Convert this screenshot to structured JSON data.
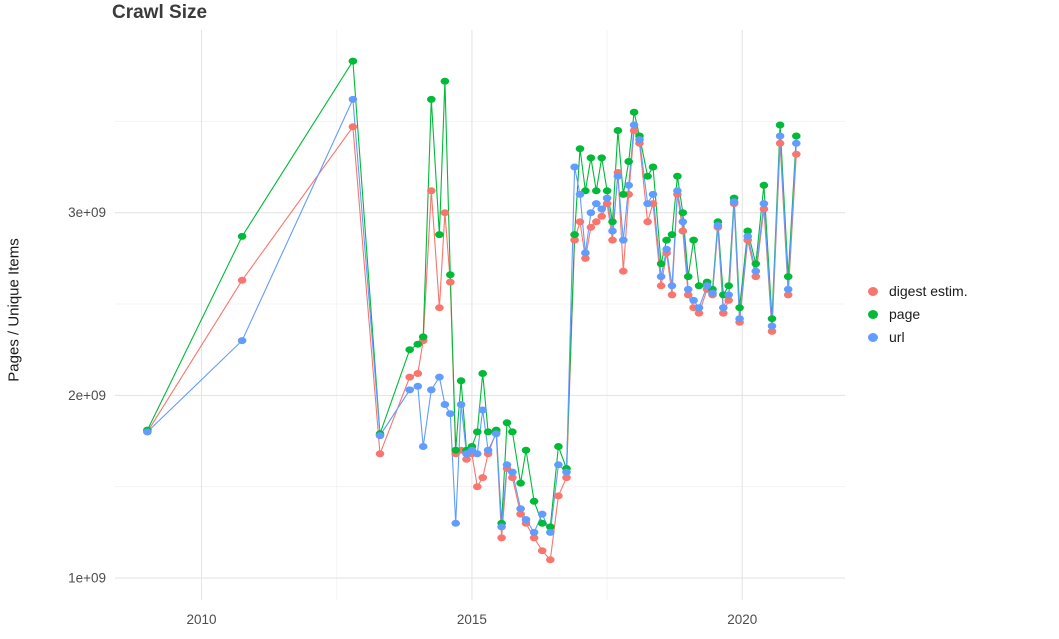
{
  "page": {
    "title": "Crawl Size",
    "ylabel": "Pages / Unique Items"
  },
  "legend": {
    "items": [
      {
        "label": "digest estim.",
        "color": "#F8766D"
      },
      {
        "label": "page",
        "color": "#00BA38"
      },
      {
        "label": "url",
        "color": "#619CFF"
      }
    ]
  },
  "chart_data": {
    "type": "line",
    "title": "Crawl Size",
    "xlabel": "",
    "ylabel": "Pages / Unique Items",
    "y_unit": "values in billions (1 = 1e+09)",
    "xlim": [
      2008.4,
      2021.9
    ],
    "ylim": [
      0.88,
      4.0
    ],
    "grid": true,
    "legend_position": "right",
    "xticks": [
      {
        "v": 2010,
        "label": "2010"
      },
      {
        "v": 2015,
        "label": "2015"
      },
      {
        "v": 2020,
        "label": "2020"
      }
    ],
    "yticks": [
      {
        "v": 1,
        "label": "1e+09"
      },
      {
        "v": 2,
        "label": "2e+09"
      },
      {
        "v": 3,
        "label": "3e+09"
      }
    ],
    "xticks_minor": [
      2012.5,
      2017.5
    ],
    "yticks_minor": [
      1.5,
      2.5,
      3.5
    ],
    "x": [
      2009.0,
      2010.75,
      2012.8,
      2013.3,
      2013.85,
      2014.0,
      2014.1,
      2014.25,
      2014.4,
      2014.5,
      2014.6,
      2014.7,
      2014.8,
      2014.9,
      2015.0,
      2015.1,
      2015.2,
      2015.3,
      2015.45,
      2015.55,
      2015.65,
      2015.75,
      2015.9,
      2016.0,
      2016.15,
      2016.3,
      2016.45,
      2016.6,
      2016.75,
      2016.9,
      2017.0,
      2017.1,
      2017.2,
      2017.3,
      2017.4,
      2017.5,
      2017.6,
      2017.7,
      2017.8,
      2017.9,
      2018.0,
      2018.1,
      2018.25,
      2018.35,
      2018.5,
      2018.6,
      2018.7,
      2018.8,
      2018.9,
      2019.0,
      2019.1,
      2019.2,
      2019.35,
      2019.45,
      2019.55,
      2019.65,
      2019.75,
      2019.85,
      2019.95,
      2020.1,
      2020.25,
      2020.4,
      2020.55,
      2020.7,
      2020.85,
      2021.0
    ],
    "series": [
      {
        "id": "digest",
        "name": "digest estim.",
        "color": "#F8766D",
        "values": [
          1.8,
          2.63,
          3.47,
          1.68,
          2.1,
          2.12,
          2.3,
          3.12,
          2.48,
          3.0,
          2.62,
          1.68,
          1.7,
          1.65,
          1.68,
          1.5,
          1.55,
          1.68,
          1.8,
          1.22,
          1.6,
          1.55,
          1.35,
          1.3,
          1.22,
          1.15,
          1.1,
          1.45,
          1.55,
          2.85,
          2.95,
          2.75,
          2.92,
          2.95,
          2.98,
          3.05,
          2.85,
          3.22,
          2.68,
          3.1,
          3.45,
          3.38,
          2.95,
          3.05,
          2.6,
          2.78,
          2.55,
          3.1,
          2.9,
          2.55,
          2.48,
          2.45,
          2.58,
          2.55,
          2.92,
          2.45,
          2.52,
          3.05,
          2.4,
          2.85,
          2.65,
          3.02,
          2.35,
          3.38,
          2.55,
          3.32
        ]
      },
      {
        "id": "page",
        "name": "page",
        "color": "#00BA38",
        "values": [
          1.81,
          2.87,
          3.83,
          1.79,
          2.25,
          2.28,
          2.32,
          3.62,
          2.88,
          3.72,
          2.66,
          1.7,
          2.08,
          1.7,
          1.72,
          1.8,
          2.12,
          1.8,
          1.81,
          1.3,
          1.85,
          1.8,
          1.52,
          1.7,
          1.42,
          1.3,
          1.28,
          1.72,
          1.6,
          2.88,
          3.35,
          3.12,
          3.3,
          3.12,
          3.3,
          3.12,
          2.95,
          3.45,
          3.1,
          3.28,
          3.55,
          3.42,
          3.2,
          3.25,
          2.72,
          2.85,
          2.88,
          3.2,
          3.0,
          2.65,
          2.85,
          2.6,
          2.62,
          2.58,
          2.95,
          2.55,
          2.6,
          3.08,
          2.48,
          2.9,
          2.72,
          3.15,
          2.42,
          3.48,
          2.65,
          3.42
        ]
      },
      {
        "id": "url",
        "name": "url",
        "color": "#619CFF",
        "values": [
          1.8,
          2.3,
          3.62,
          1.78,
          2.03,
          2.05,
          1.72,
          2.03,
          2.1,
          1.95,
          1.9,
          1.3,
          1.95,
          1.68,
          1.7,
          1.68,
          1.92,
          1.7,
          1.79,
          1.28,
          1.62,
          1.58,
          1.38,
          1.32,
          1.25,
          1.35,
          1.25,
          1.62,
          1.58,
          3.25,
          3.1,
          2.78,
          3.0,
          3.05,
          3.02,
          3.08,
          2.9,
          3.2,
          2.85,
          3.15,
          3.48,
          3.4,
          3.05,
          3.1,
          2.65,
          2.8,
          2.6,
          3.12,
          2.95,
          2.58,
          2.52,
          2.48,
          2.6,
          2.56,
          2.93,
          2.48,
          2.55,
          3.06,
          2.42,
          2.87,
          2.68,
          3.05,
          2.38,
          3.42,
          2.58,
          3.38
        ]
      }
    ]
  }
}
